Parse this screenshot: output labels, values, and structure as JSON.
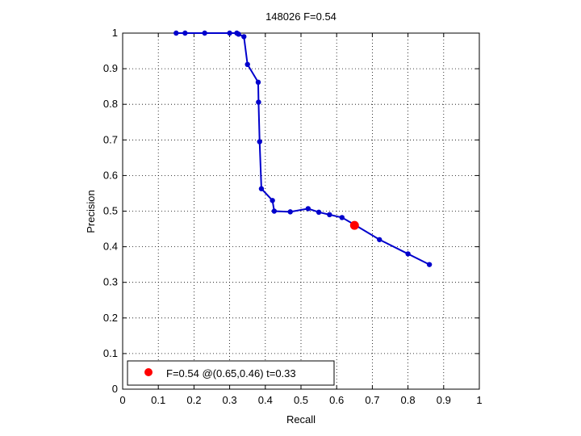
{
  "chart_data": {
    "type": "line",
    "title": "148026 F=0.54",
    "xlabel": "Recall",
    "ylabel": "Precision",
    "xlim": [
      0,
      1
    ],
    "ylim": [
      0,
      1
    ],
    "x_ticks": [
      "0",
      "0.1",
      "0.2",
      "0.3",
      "0.4",
      "0.5",
      "0.6",
      "0.7",
      "0.8",
      "0.9",
      "1"
    ],
    "y_ticks": [
      "0",
      "0.1",
      "0.2",
      "0.3",
      "0.4",
      "0.5",
      "0.6",
      "0.7",
      "0.8",
      "0.9",
      "1"
    ],
    "grid": true,
    "grid_style": "dotted",
    "legend_position": "bottom-left",
    "series": [
      {
        "color": "#0000cc",
        "marker": "dot",
        "points": [
          [
            0.15,
            1.0
          ],
          [
            0.175,
            1.0
          ],
          [
            0.23,
            1.0
          ],
          [
            0.3,
            1.0
          ],
          [
            0.32,
            1.0
          ],
          [
            0.325,
            0.997
          ],
          [
            0.34,
            0.99
          ],
          [
            0.35,
            0.912
          ],
          [
            0.38,
            0.862
          ],
          [
            0.381,
            0.806
          ],
          [
            0.384,
            0.695
          ],
          [
            0.389,
            0.563
          ],
          [
            0.42,
            0.53
          ],
          [
            0.425,
            0.5
          ],
          [
            0.47,
            0.498
          ],
          [
            0.52,
            0.507
          ],
          [
            0.55,
            0.497
          ],
          [
            0.58,
            0.49
          ],
          [
            0.615,
            0.482
          ],
          [
            0.65,
            0.462
          ],
          [
            0.72,
            0.42
          ],
          [
            0.8,
            0.38
          ],
          [
            0.86,
            0.35
          ]
        ]
      }
    ],
    "highlight_point": {
      "recall": 0.65,
      "precision": 0.46,
      "color": "#ff0000",
      "label": "F=0.54 @(0.65,0.46) t=0.33"
    }
  }
}
